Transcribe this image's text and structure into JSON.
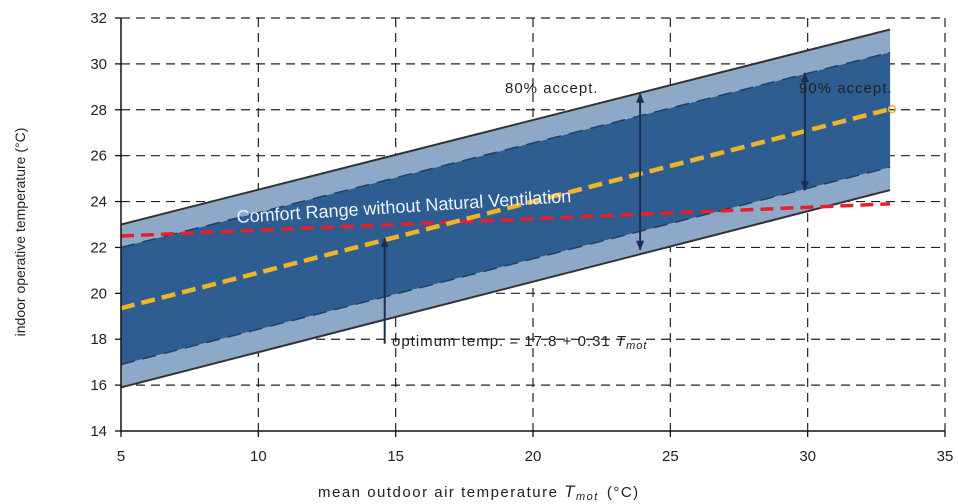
{
  "chart_data": {
    "type": "area",
    "xlabel_prefix": "mean outdoor air temperature ",
    "xlabel_var": "T",
    "xlabel_sub": "mot",
    "xlabel_unit": "(°C)",
    "ylabel": "indoor operative temperature (°C)",
    "xlim": [
      5,
      35
    ],
    "ylim": [
      14,
      32
    ],
    "x_ticks": [
      5,
      10,
      15,
      20,
      25,
      30,
      35
    ],
    "y_ticks": [
      14,
      16,
      18,
      20,
      22,
      24,
      26,
      28,
      30,
      32
    ],
    "grid": true,
    "series": [
      {
        "name": "80% accept.",
        "x": [
          5,
          33
        ],
        "upper": [
          23.0,
          31.5
        ],
        "lower": [
          15.9,
          24.5
        ]
      },
      {
        "name": "90% accept.",
        "x": [
          5,
          33
        ],
        "upper": [
          22.0,
          30.5
        ],
        "lower": [
          16.9,
          25.5
        ]
      }
    ],
    "optimum_line": {
      "x": [
        5,
        33
      ],
      "y": [
        19.35,
        28.03
      ]
    },
    "natural_ventilation_limit": {
      "x": [
        5,
        33
      ],
      "y": [
        22.5,
        23.9
      ]
    },
    "annotations": {
      "accept80": "80% accept.",
      "accept90": "90% accept.",
      "comfort": "Comfort Range without Natural Ventilation",
      "optimum_prefix": "optimum temp. = 17.8 + 0.31 ",
      "optimum_var": "T",
      "optimum_sub": "mot"
    },
    "colors": {
      "band80": "#8ea8c8",
      "band90": "#2e5d92",
      "border": "#333333",
      "optimum": "#f0b429",
      "limit": "#e8202a",
      "grid": "#222222"
    }
  }
}
